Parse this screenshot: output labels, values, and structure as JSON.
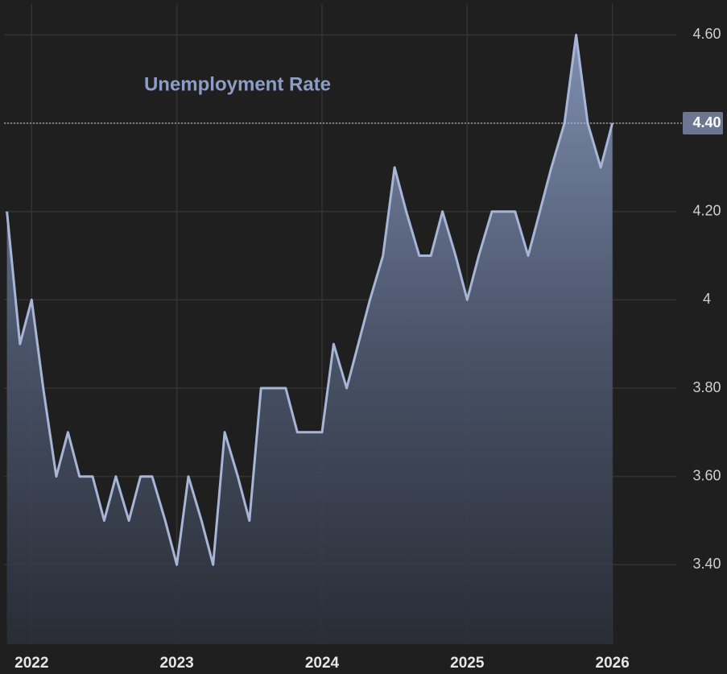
{
  "chart_data": {
    "type": "area",
    "title": "Unemployment Rate",
    "x": [
      2021.83,
      2021.92,
      2022.0,
      2022.08,
      2022.17,
      2022.25,
      2022.33,
      2022.42,
      2022.5,
      2022.58,
      2022.67,
      2022.75,
      2022.83,
      2022.92,
      2023.0,
      2023.08,
      2023.17,
      2023.25,
      2023.33,
      2023.42,
      2023.5,
      2023.58,
      2023.67,
      2023.75,
      2023.83,
      2023.92,
      2024.0,
      2024.08,
      2024.17,
      2024.25,
      2024.33,
      2024.42,
      2024.5,
      2024.58,
      2024.67,
      2024.75,
      2024.83,
      2024.92,
      2025.0,
      2025.08,
      2025.17,
      2025.25,
      2025.33,
      2025.42,
      2025.5,
      2025.58,
      2025.67,
      2025.75,
      2025.83,
      2025.92,
      2026.0
    ],
    "series": [
      {
        "name": "Unemployment Rate",
        "color": "#a7b6d6",
        "values": [
          4.2,
          3.9,
          4.0,
          3.8,
          3.6,
          3.7,
          3.6,
          3.6,
          3.5,
          3.6,
          3.5,
          3.6,
          3.6,
          3.5,
          3.4,
          3.6,
          3.5,
          3.4,
          3.7,
          3.6,
          3.5,
          3.8,
          3.8,
          3.8,
          3.7,
          3.7,
          3.7,
          3.9,
          3.8,
          3.9,
          4.0,
          4.1,
          4.3,
          4.2,
          4.1,
          4.1,
          4.2,
          4.1,
          4.0,
          4.1,
          4.2,
          4.2,
          4.2,
          4.1,
          4.2,
          4.3,
          4.4,
          4.6,
          4.4,
          4.3,
          4.4
        ]
      }
    ],
    "xlim": [
      2021.81,
      2026.44
    ],
    "xticks": [
      2022,
      2023,
      2024,
      2025,
      2026
    ],
    "ylim": [
      3.22,
      4.67
    ],
    "yticks": [
      {
        "value": 4.6,
        "label": "4.60"
      },
      {
        "value": 4.4,
        "label": "4.40"
      },
      {
        "value": 4.2,
        "label": "4.20"
      },
      4,
      {
        "value": 3.8,
        "label": "3.80"
      },
      {
        "value": 3.6,
        "label": "3.60"
      },
      {
        "value": 3.4,
        "label": "3.40"
      }
    ],
    "grid": true
  }
}
